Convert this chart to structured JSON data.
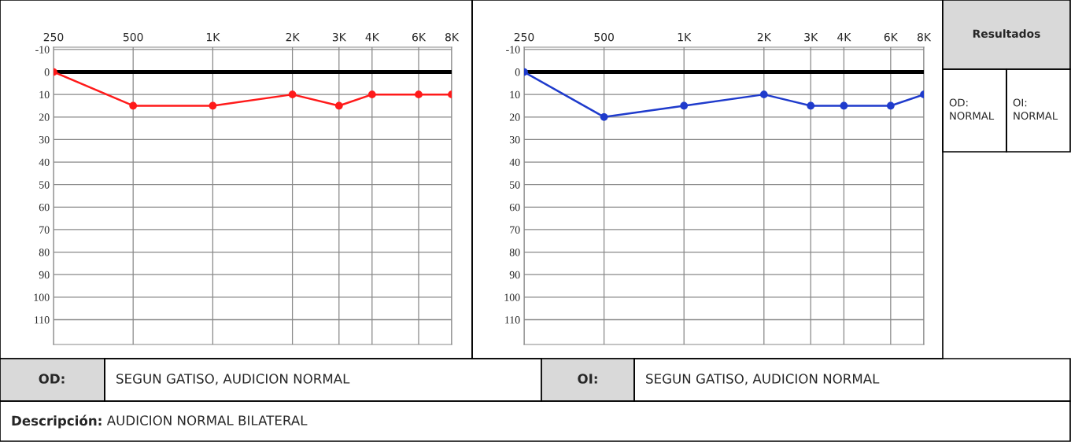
{
  "chart_data": [
    {
      "type": "line",
      "log": "x",
      "x": [
        250,
        500,
        1000,
        2000,
        3000,
        4000,
        6000,
        8000
      ],
      "series": [
        {
          "color": "#ff1a1a",
          "values": [
            0,
            15,
            15,
            10,
            15,
            10,
            10,
            10
          ]
        }
      ],
      "xlim": [
        250,
        8000
      ],
      "xticks": [
        250,
        500,
        {
          "value": 1000,
          "label": "1K"
        },
        {
          "value": 2000,
          "label": "2K"
        },
        {
          "value": 3000,
          "label": "3K"
        },
        {
          "value": 4000,
          "label": "4K"
        },
        {
          "value": 6000,
          "label": "6K"
        },
        {
          "value": 8000,
          "label": "8K"
        }
      ],
      "ylim": [
        121,
        -11
      ],
      "yticks": [
        -10,
        0,
        10,
        20,
        30,
        40,
        50,
        60,
        70,
        80,
        90,
        100,
        110
      ],
      "grid": true,
      "marker": "circle",
      "line_style": "solid",
      "ref_lines": [
        {
          "axis": "y",
          "value": 0,
          "color": "#000000"
        }
      ]
    },
    {
      "type": "line",
      "log": "x",
      "x": [
        250,
        500,
        1000,
        2000,
        3000,
        4000,
        6000,
        8000
      ],
      "series": [
        {
          "color": "#1f3bcc",
          "values": [
            0,
            20,
            15,
            10,
            15,
            15,
            15,
            10
          ]
        }
      ],
      "xlim": [
        250,
        8000
      ],
      "xticks": [
        250,
        500,
        {
          "value": 1000,
          "label": "1K"
        },
        {
          "value": 2000,
          "label": "2K"
        },
        {
          "value": 3000,
          "label": "3K"
        },
        {
          "value": 4000,
          "label": "4K"
        },
        {
          "value": 6000,
          "label": "6K"
        },
        {
          "value": 8000,
          "label": "8K"
        }
      ],
      "ylim": [
        121,
        -11
      ],
      "yticks": [
        -10,
        0,
        10,
        20,
        30,
        40,
        50,
        60,
        70,
        80,
        90,
        100,
        110
      ],
      "grid": true,
      "marker": "circle",
      "line_style": "solid",
      "ref_lines": [
        {
          "axis": "y",
          "value": 0,
          "color": "#000000"
        }
      ]
    },
    {
      "type": "other",
      "annotations": [
        "Resultados",
        "OD:\nNORMAL",
        "OI:\nNORMAL",
        "OD:",
        "SEGUN GATISO, AUDICION NORMAL",
        "OI:",
        "SEGUN GATISO, AUDICION NORMAL",
        "Descripción:",
        "AUDICION NORMAL BILATERAL"
      ]
    }
  ]
}
